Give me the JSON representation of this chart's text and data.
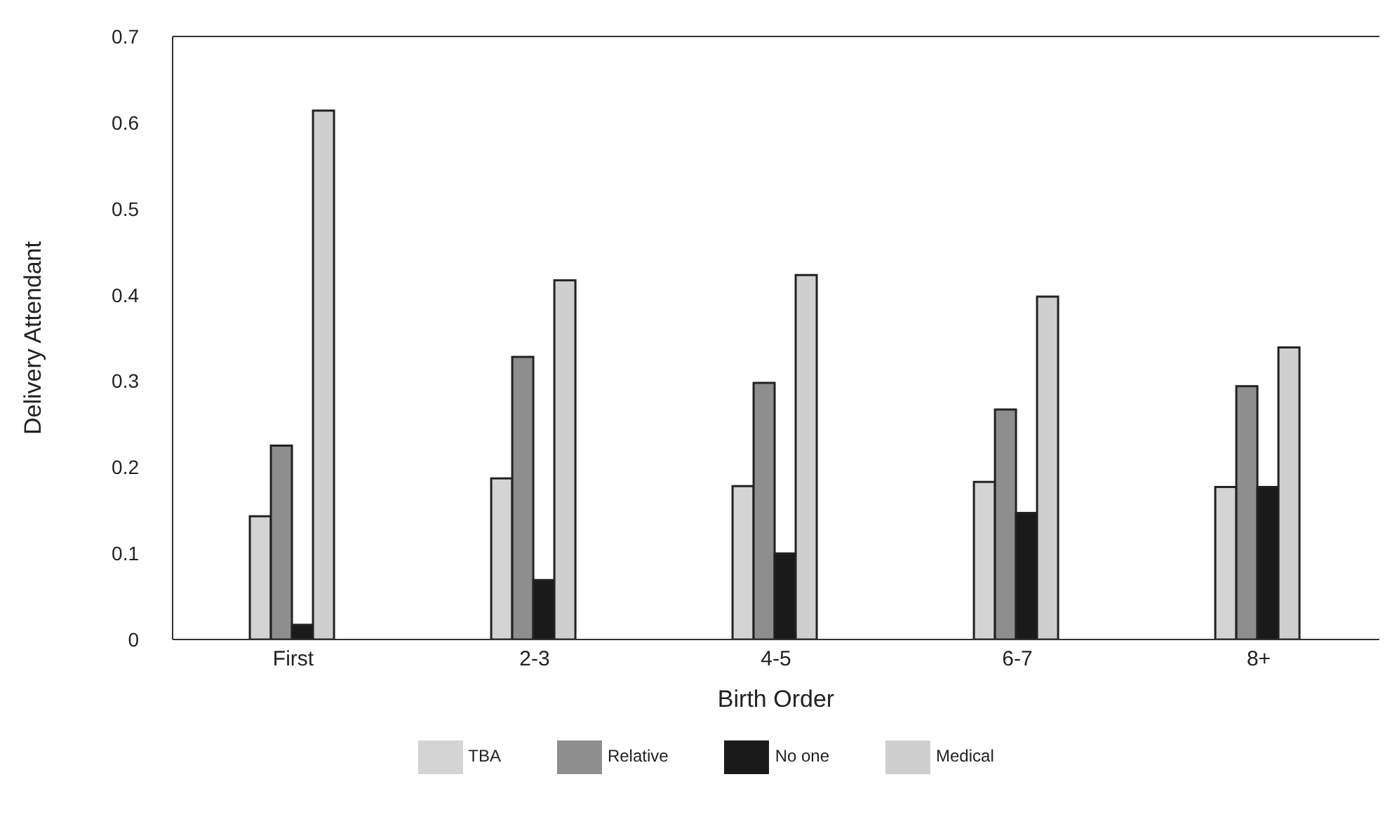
{
  "chart_data": {
    "type": "bar",
    "xlabel": "Birth Order",
    "ylabel": "Delivery Attendant",
    "categories": [
      "First",
      "2-3",
      "4-5",
      "6-7",
      "8+"
    ],
    "series": [
      {
        "name": "TBA",
        "color": "#d4d4d4",
        "values": [
          0.143,
          0.187,
          0.178,
          0.183,
          0.177
        ]
      },
      {
        "name": "Relative",
        "color": "#8e8e8e",
        "values": [
          0.225,
          0.328,
          0.298,
          0.267,
          0.294
        ]
      },
      {
        "name": "No one",
        "color": "#1a1a1a",
        "values": [
          0.017,
          0.069,
          0.1,
          0.147,
          0.177
        ]
      },
      {
        "name": "Medical",
        "color": "#cfcfcf",
        "values": [
          0.614,
          0.417,
          0.423,
          0.398,
          0.339
        ]
      }
    ],
    "ylim": [
      0,
      0.7
    ],
    "yticks": [
      0,
      0.1,
      0.2,
      0.3,
      0.4,
      0.5,
      0.6,
      0.7
    ],
    "grid": false,
    "legend": "bottom"
  }
}
